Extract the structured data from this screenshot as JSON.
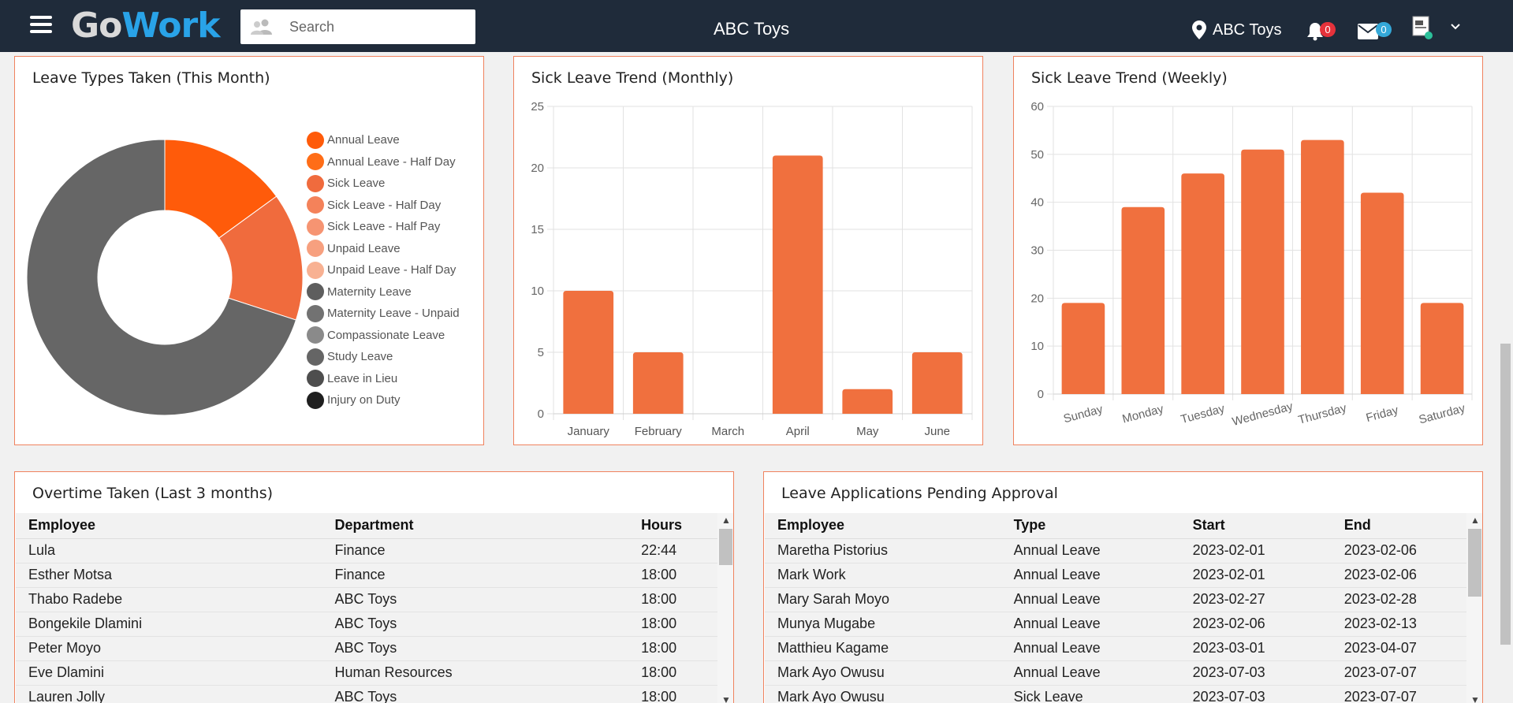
{
  "header": {
    "logo_go": "Go",
    "logo_work": "Work",
    "search_placeholder": "Search",
    "title": "ABC Toys",
    "location": "ABC Toys",
    "notifications_count": "0",
    "messages_count": "0"
  },
  "leave_types": {
    "title": "Leave Types Taken (This Month)",
    "legend": [
      {
        "label": "Annual Leave",
        "color": "#ff5b0a"
      },
      {
        "label": "Annual Leave - Half Day",
        "color": "#ff6d17"
      },
      {
        "label": "Sick Leave",
        "color": "#f06b3d"
      },
      {
        "label": "Sick Leave - Half Day",
        "color": "#f4825a"
      },
      {
        "label": "Sick Leave - Half Pay",
        "color": "#f69472"
      },
      {
        "label": "Unpaid Leave",
        "color": "#f7a07f"
      },
      {
        "label": "Unpaid Leave - Half Day",
        "color": "#f8b192"
      },
      {
        "label": "Maternity Leave",
        "color": "#5e5e5e"
      },
      {
        "label": "Maternity Leave - Unpaid",
        "color": "#727272"
      },
      {
        "label": "Compassionate Leave",
        "color": "#8a8a8a"
      },
      {
        "label": "Study Leave",
        "color": "#656565"
      },
      {
        "label": "Leave in Lieu",
        "color": "#4e4e4e"
      },
      {
        "label": "Injury on Duty",
        "color": "#1f1f1f"
      }
    ]
  },
  "chart_data": [
    {
      "type": "pie",
      "title": "Leave Types Taken (This Month)",
      "categories": [
        "Annual Leave",
        "Sick Leave",
        "Maternity Leave"
      ],
      "values": [
        15,
        15,
        70
      ],
      "colors": [
        "#ff5b0a",
        "#f06b3d",
        "#666666"
      ],
      "donut": true
    },
    {
      "type": "bar",
      "title": "Sick Leave Trend (Monthly)",
      "categories": [
        "January",
        "February",
        "March",
        "April",
        "May",
        "June"
      ],
      "values": [
        10,
        5,
        0,
        21,
        2,
        5
      ],
      "ylim": [
        0,
        25
      ],
      "yticks": [
        0,
        5,
        10,
        15,
        20,
        25
      ],
      "color": "#f0703e",
      "grid": true
    },
    {
      "type": "bar",
      "title": "Sick Leave Trend (Weekly)",
      "categories": [
        "Sunday",
        "Monday",
        "Tuesday",
        "Wednesday",
        "Thursday",
        "Friday",
        "Saturday"
      ],
      "values": [
        19,
        39,
        46,
        51,
        53,
        42,
        19
      ],
      "ylim": [
        0,
        60
      ],
      "yticks": [
        0,
        10,
        20,
        30,
        40,
        50,
        60
      ],
      "color": "#f0703e",
      "grid": true
    }
  ],
  "overtime": {
    "title": "Overtime Taken (Last 3 months)",
    "columns": [
      "Employee",
      "Department",
      "Hours"
    ],
    "rows": [
      [
        "Lula",
        "Finance",
        "22:44"
      ],
      [
        "Esther Motsa",
        "Finance",
        "18:00"
      ],
      [
        "Thabo Radebe",
        "ABC Toys",
        "18:00"
      ],
      [
        "Bongekile Dlamini",
        "ABC Toys",
        "18:00"
      ],
      [
        "Peter Moyo",
        "ABC Toys",
        "18:00"
      ],
      [
        "Eve Dlamini",
        "Human Resources",
        "18:00"
      ],
      [
        "Lauren Jolly",
        "ABC Toys",
        "18:00"
      ]
    ]
  },
  "pending": {
    "title": "Leave Applications Pending Approval",
    "columns": [
      "Employee",
      "Type",
      "Start",
      "End"
    ],
    "rows": [
      [
        "Maretha Pistorius",
        "Annual Leave",
        "2023-02-01",
        "2023-02-06"
      ],
      [
        "Mark Work",
        "Annual Leave",
        "2023-02-01",
        "2023-02-06"
      ],
      [
        "Mary Sarah Moyo",
        "Annual Leave",
        "2023-02-27",
        "2023-02-28"
      ],
      [
        "Munya Mugabe",
        "Annual Leave",
        "2023-02-06",
        "2023-02-13"
      ],
      [
        "Matthieu Kagame",
        "Annual Leave",
        "2023-03-01",
        "2023-04-07"
      ],
      [
        "Mark Ayo Owusu",
        "Annual Leave",
        "2023-07-03",
        "2023-07-07"
      ],
      [
        "Mark Ayo Owusu",
        "Sick Leave",
        "2023-07-03",
        "2023-07-07"
      ]
    ]
  }
}
